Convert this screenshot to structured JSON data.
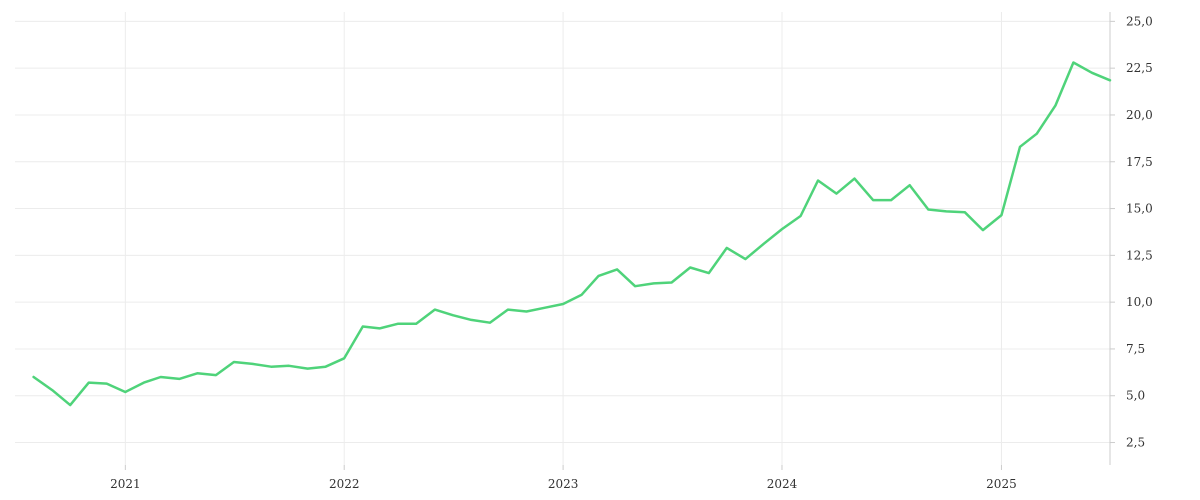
{
  "chart_data": {
    "type": "line",
    "title": "",
    "xlabel": "",
    "ylabel": "",
    "grid": true,
    "legend": "none",
    "line_color": "#4fd37a",
    "x_ticks": [
      "2021",
      "2022",
      "2023",
      "2024",
      "2025"
    ],
    "y_ticks": [
      "2,5",
      "5,0",
      "7,5",
      "10,0",
      "12,5",
      "15,0",
      "17,5",
      "20,0",
      "22,5",
      "25,0"
    ],
    "xlim": [
      "2020-07-01",
      "2025-07-01"
    ],
    "ylim": [
      1.3,
      25.5
    ],
    "series": [
      {
        "x": [
          "2020-08",
          "2020-09",
          "2020-10",
          "2020-11",
          "2020-12",
          "2021-01",
          "2021-02",
          "2021-03",
          "2021-04",
          "2021-05",
          "2021-06",
          "2021-07",
          "2021-08",
          "2021-09",
          "2021-10",
          "2021-11",
          "2021-12",
          "2022-01",
          "2022-02",
          "2022-03",
          "2022-04",
          "2022-05",
          "2022-06",
          "2022-07",
          "2022-08",
          "2022-09",
          "2022-10",
          "2022-11",
          "2022-12",
          "2023-01",
          "2023-02",
          "2023-03",
          "2023-04",
          "2023-05",
          "2023-06",
          "2023-07",
          "2023-08",
          "2023-09",
          "2023-10",
          "2023-11",
          "2023-12",
          "2024-01",
          "2024-02",
          "2024-03",
          "2024-04",
          "2024-05",
          "2024-06",
          "2024-07",
          "2024-08",
          "2024-09",
          "2024-10",
          "2024-11",
          "2024-12",
          "2025-01",
          "2025-02",
          "2025-03",
          "2025-04",
          "2025-05",
          "2025-06",
          "2025-07"
        ],
        "values": [
          6.0,
          5.3,
          4.5,
          5.7,
          5.65,
          5.2,
          5.7,
          6.0,
          5.9,
          6.2,
          6.1,
          6.8,
          6.7,
          6.55,
          6.6,
          6.45,
          6.55,
          7.0,
          8.7,
          8.6,
          8.85,
          8.85,
          9.6,
          9.3,
          9.05,
          8.9,
          9.6,
          9.5,
          9.7,
          9.9,
          10.4,
          11.4,
          11.75,
          10.85,
          11.0,
          11.05,
          11.85,
          11.55,
          12.9,
          12.3,
          13.1,
          13.9,
          14.6,
          16.5,
          15.8,
          16.6,
          15.45,
          15.45,
          16.25,
          14.95,
          14.85,
          14.8,
          13.85,
          14.65,
          18.3,
          19.0,
          20.5,
          22.8,
          22.25,
          21.85
        ]
      }
    ]
  }
}
